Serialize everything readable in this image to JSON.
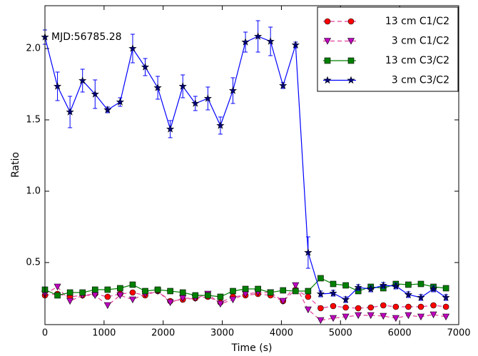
{
  "chart_data": {
    "type": "line",
    "xlabel": "Time (s)",
    "ylabel": "Ratio",
    "annotation": "MJD:56785.28",
    "x": [
      0,
      212,
      424,
      636,
      848,
      1060,
      1272,
      1484,
      1696,
      1908,
      2120,
      2332,
      2544,
      2756,
      2968,
      3180,
      3392,
      3604,
      3816,
      4028,
      4240,
      4452,
      4664,
      4876,
      5088,
      5300,
      5512,
      5724,
      5936,
      6148,
      6360,
      6572,
      6784
    ],
    "series": [
      {
        "name": "13 cm C1/C2",
        "color": "#ff0000",
        "line_color": "#e0409a",
        "marker": "circle",
        "linestyle": "dashed",
        "values": [
          0.27,
          0.28,
          0.26,
          0.27,
          0.28,
          0.26,
          0.28,
          0.29,
          0.27,
          0.3,
          0.23,
          0.24,
          0.25,
          0.26,
          0.22,
          0.26,
          0.27,
          0.28,
          0.27,
          0.23,
          0.31,
          0.26,
          0.18,
          0.195,
          0.185,
          0.18,
          0.185,
          0.2,
          0.19,
          0.19,
          0.19,
          0.2,
          0.19
        ]
      },
      {
        "name": "3 cm C1/C2",
        "color": "#bf00bf",
        "line_color": "#e0409a",
        "marker": "triangle",
        "linestyle": "dashed",
        "values": [
          0.28,
          0.33,
          0.23,
          0.27,
          0.27,
          0.2,
          0.27,
          0.24,
          0.28,
          0.3,
          0.22,
          0.25,
          0.25,
          0.28,
          0.21,
          0.24,
          0.28,
          0.29,
          0.29,
          0.23,
          0.34,
          0.17,
          0.095,
          0.11,
          0.12,
          0.13,
          0.13,
          0.125,
          0.11,
          0.13,
          0.12,
          0.135,
          0.12
        ]
      },
      {
        "name": "13 cm C3/C2",
        "color": "#008000",
        "line_color": "#008000",
        "marker": "square",
        "linestyle": "solid",
        "values": [
          0.31,
          0.27,
          0.29,
          0.29,
          0.31,
          0.31,
          0.32,
          0.345,
          0.3,
          0.31,
          0.3,
          0.29,
          0.27,
          0.27,
          0.26,
          0.3,
          0.315,
          0.315,
          0.29,
          0.305,
          0.3,
          0.3,
          0.39,
          0.35,
          0.34,
          0.3,
          0.33,
          0.32,
          0.35,
          0.345,
          0.35,
          0.33,
          0.32
        ]
      },
      {
        "name": "3 cm C3/C2",
        "color": "#000080",
        "line_color": "#0000ff",
        "marker": "star",
        "linestyle": "solid",
        "values": [
          2.08,
          1.735,
          1.555,
          1.775,
          1.68,
          1.57,
          1.625,
          2.0,
          1.87,
          1.725,
          1.435,
          1.735,
          1.615,
          1.65,
          1.46,
          1.705,
          2.045,
          2.085,
          2.05,
          1.74,
          2.025,
          0.57,
          0.28,
          0.285,
          0.24,
          0.325,
          0.315,
          0.34,
          0.335,
          0.275,
          0.255,
          0.315,
          0.255
        ],
        "errors": [
          0.05,
          0.1,
          0.11,
          0.08,
          0.1,
          0.02,
          0.03,
          0.1,
          0.06,
          0.08,
          0.06,
          0.08,
          0.05,
          0.08,
          0.06,
          0.09,
          0.07,
          0.11,
          0.1,
          0.02,
          0.02,
          0.11,
          0.02,
          0.02,
          0.02,
          0.02,
          0.02,
          0.02,
          0.02,
          0.02,
          0.02,
          0.02,
          0.02
        ]
      }
    ],
    "xlim": [
      0,
      7000
    ],
    "xticks": [
      0,
      1000,
      2000,
      3000,
      4000,
      5000,
      6000,
      7000
    ],
    "ylim": [
      0.065,
      2.3
    ],
    "yticks": [
      0.5,
      {
        "value": 1,
        "label": "1.0"
      },
      1.5,
      {
        "value": 2,
        "label": "2.0"
      }
    ],
    "legend": "upper right"
  }
}
